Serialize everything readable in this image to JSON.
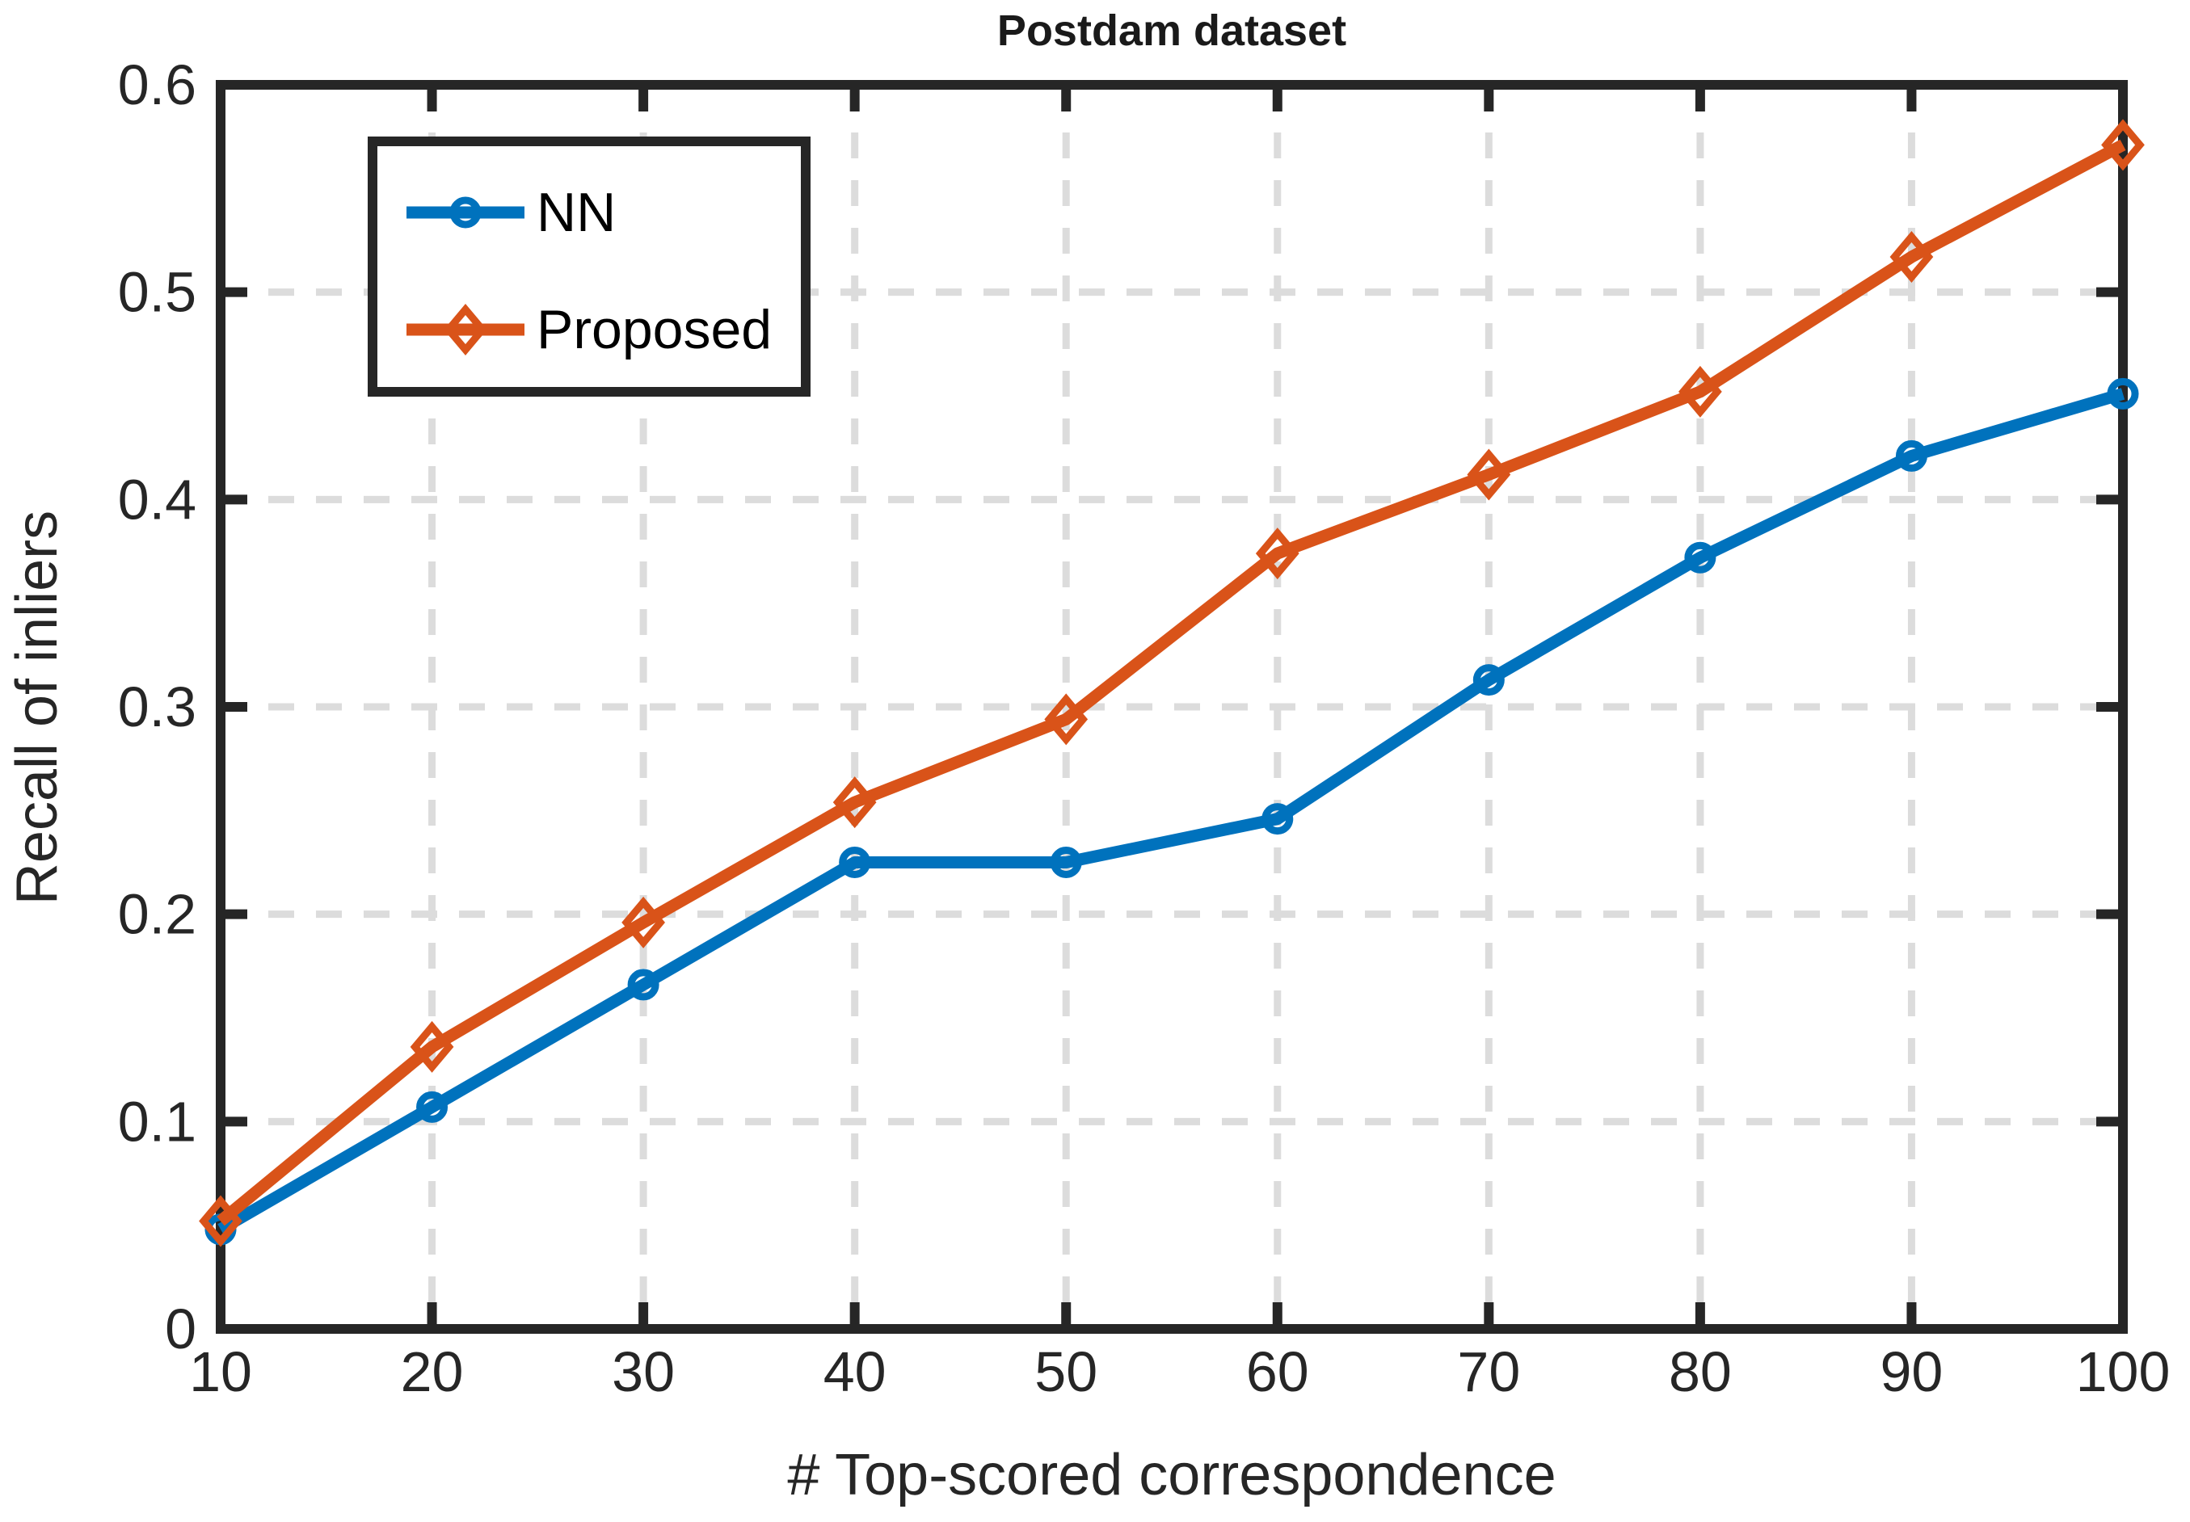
{
  "chart_data": {
    "type": "line",
    "title": "Postdam dataset",
    "xlabel": "# Top-scored correspondence",
    "ylabel": "Recall of inliers",
    "x": [
      10,
      20,
      30,
      40,
      50,
      60,
      70,
      80,
      90,
      100
    ],
    "xlim": [
      10,
      100
    ],
    "ylim": [
      0,
      0.6
    ],
    "xticks": {
      "values": [
        10,
        20,
        30,
        40,
        50,
        60,
        70,
        80,
        90,
        100
      ],
      "labels": [
        "10",
        "20",
        "30",
        "40",
        "50",
        "60",
        "70",
        "80",
        "90",
        "100"
      ]
    },
    "yticks": {
      "values": [
        0,
        0.1,
        0.2,
        0.3,
        0.4,
        0.5,
        0.6
      ],
      "labels": [
        "0",
        "0.1",
        "0.2",
        "0.3",
        "0.4",
        "0.5",
        "0.6"
      ]
    },
    "grid": {
      "shown": true,
      "style": "dashed",
      "color": "#dcdcdc"
    },
    "axis_color": "#262626",
    "background": "#ffffff",
    "legend": {
      "position": "top-left-inside",
      "entries": [
        "NN",
        "Proposed"
      ]
    },
    "series": [
      {
        "name": "NN",
        "color": "#0072bd",
        "marker": "circle",
        "values": [
          0.048,
          0.107,
          0.166,
          0.225,
          0.225,
          0.246,
          0.313,
          0.372,
          0.421,
          0.451
        ]
      },
      {
        "name": "Proposed",
        "color": "#d95319",
        "marker": "diamond",
        "values": [
          0.052,
          0.136,
          0.196,
          0.254,
          0.294,
          0.374,
          0.412,
          0.452,
          0.517,
          0.571
        ]
      }
    ]
  }
}
